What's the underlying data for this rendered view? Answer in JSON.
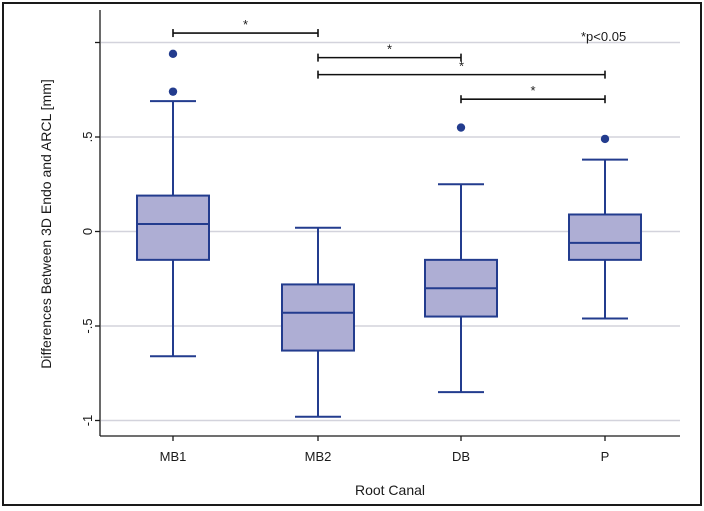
{
  "chart_data": {
    "type": "box",
    "xlabel": "Root Canal",
    "ylabel": "Differences Between 3D Endo and ARCL [mm]",
    "ylim": [
      -1.07,
      1.07
    ],
    "yticks": [
      {
        "value": 0.5,
        "label": ".5"
      },
      {
        "value": 0,
        "label": "0"
      },
      {
        "value": -0.5,
        "label": "-.5"
      },
      {
        "value": -1,
        "label": "-1"
      }
    ],
    "ytick_marks": [
      1,
      0.5,
      0,
      -0.5,
      -1
    ],
    "categories": [
      "MB1",
      "MB2",
      "DB",
      "P"
    ],
    "boxes": [
      {
        "category": "MB1",
        "whisker_low": -0.66,
        "q1": -0.15,
        "median": 0.04,
        "q3": 0.19,
        "whisker_high": 0.69,
        "outliers": [
          0.94,
          0.74
        ]
      },
      {
        "category": "MB2",
        "whisker_low": -0.98,
        "q1": -0.63,
        "median": -0.43,
        "q3": -0.28,
        "whisker_high": 0.02,
        "outliers": []
      },
      {
        "category": "DB",
        "whisker_low": -0.85,
        "q1": -0.45,
        "median": -0.3,
        "q3": -0.15,
        "whisker_high": 0.25,
        "outliers": [
          0.55
        ]
      },
      {
        "category": "P",
        "whisker_low": -0.46,
        "q1": -0.15,
        "median": -0.06,
        "q3": 0.09,
        "whisker_high": 0.38,
        "outliers": [
          0.49
        ]
      }
    ],
    "significance_brackets": [
      {
        "from": "MB1",
        "to": "MB2",
        "y": 1.05,
        "label": "*"
      },
      {
        "from": "MB2",
        "to": "DB",
        "y": 0.92,
        "label": "*"
      },
      {
        "from": "MB2",
        "to": "P",
        "y": 0.83,
        "label": "*"
      },
      {
        "from": "DB",
        "to": "P",
        "y": 0.7,
        "label": "*"
      }
    ],
    "annotation": "*p<0.05",
    "colors": {
      "box_fill": "#aeaed4",
      "box_stroke": "#233c8e",
      "outlier": "#233c8e",
      "grid": "#d3d3dc",
      "bracket": "#111111"
    },
    "grid": true
  }
}
